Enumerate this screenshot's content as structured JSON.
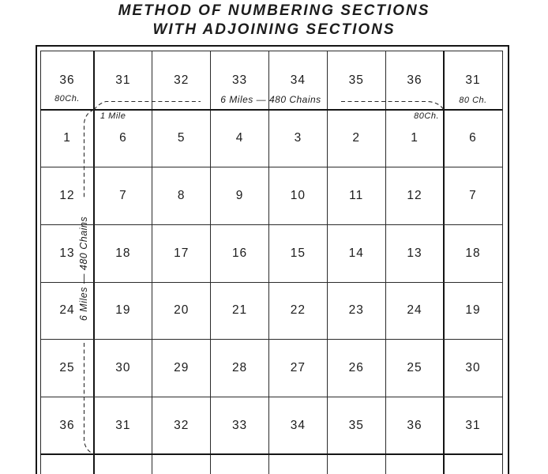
{
  "title": {
    "line1": "METHOD OF NUMBERING SECTIONS",
    "line2": "WITH ADJOINING SECTIONS"
  },
  "grid": {
    "rows": [
      {
        "cells": [
          "36",
          "31",
          "32",
          "33",
          "34",
          "35",
          "36",
          "31"
        ]
      },
      {
        "cells": [
          "1",
          "6",
          "5",
          "4",
          "3",
          "2",
          "1",
          "6"
        ]
      },
      {
        "cells": [
          "12",
          "7",
          "8",
          "9",
          "10",
          "11",
          "12",
          "7"
        ]
      },
      {
        "cells": [
          "13",
          "18",
          "17",
          "16",
          "15",
          "14",
          "13",
          "18"
        ]
      },
      {
        "cells": [
          "24",
          "19",
          "20",
          "21",
          "22",
          "23",
          "24",
          "19"
        ]
      },
      {
        "cells": [
          "25",
          "30",
          "29",
          "28",
          "27",
          "26",
          "25",
          "30"
        ]
      },
      {
        "cells": [
          "36",
          "31",
          "32",
          "33",
          "34",
          "35",
          "36",
          "31"
        ]
      },
      {
        "cells": [
          "",
          "",
          "",
          "",
          "",
          "",
          "",
          ""
        ]
      }
    ]
  },
  "annotations": {
    "top_left_chains": "80Ch.",
    "top_right_chains": "80 Ch.",
    "horizontal_span_label": "6 Miles — 480 Chains",
    "one_mile_label": "1 Mile",
    "section1_chains": "80Ch.",
    "vertical_span_label": "6 Miles — 480 Chains"
  },
  "colors": {
    "ink": "#1c1c1c",
    "paper": "#ffffff"
  }
}
